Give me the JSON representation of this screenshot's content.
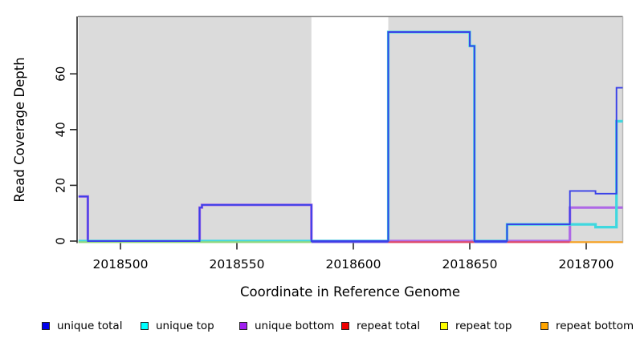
{
  "figure": {
    "x_label": "Coordinate in Reference Genome",
    "y_label": "Read Coverage Depth"
  },
  "axes": {
    "x_ticks": [
      2018500,
      2018550,
      2018600,
      2018650,
      2018700
    ],
    "y_ticks": [
      0,
      20,
      40,
      60
    ]
  },
  "legend": {
    "items": [
      {
        "label": "unique total",
        "color": "#0000EE"
      },
      {
        "label": "unique top",
        "color": "#00FFFF"
      },
      {
        "label": "unique bottom",
        "color": "#A020F0"
      },
      {
        "label": "repeat total",
        "color": "#EE0000"
      },
      {
        "label": "repeat top",
        "color": "#FFFF00"
      },
      {
        "label": "repeat bottom",
        "color": "#FFA500"
      }
    ]
  },
  "chart_data": {
    "type": "line",
    "subtype": "step-coverage",
    "title": "",
    "xlabel": "Coordinate in Reference Genome",
    "ylabel": "Read Coverage Depth",
    "xlim": [
      2018482,
      2018716
    ],
    "ylim": [
      0,
      80
    ],
    "grid": false,
    "legend_position": "bottom",
    "panel_background": "#ffffff",
    "shaded_regions": [
      {
        "x1": 2018482,
        "x2": 2018582,
        "color": "#DBDBDB"
      },
      {
        "x1": 2018615,
        "x2": 2018716,
        "color": "#DBDBDB"
      }
    ],
    "white_gap": {
      "x1": 2018582,
      "x2": 2018615
    },
    "series": [
      {
        "name": "unique total",
        "line_color": "#3940E8",
        "line_width": 1.9,
        "points": [
          [
            2018482,
            16
          ],
          [
            2018486,
            16
          ],
          [
            2018486,
            0
          ],
          [
            2018534,
            0
          ],
          [
            2018534,
            12
          ],
          [
            2018535,
            12
          ],
          [
            2018535,
            13
          ],
          [
            2018582,
            13
          ],
          [
            2018582,
            0
          ],
          [
            2018615,
            0
          ],
          [
            2018615,
            75
          ],
          [
            2018650,
            75
          ],
          [
            2018650,
            70
          ],
          [
            2018652,
            70
          ],
          [
            2018652,
            0
          ],
          [
            2018666,
            0
          ],
          [
            2018666,
            6
          ],
          [
            2018693,
            6
          ],
          [
            2018693,
            18
          ],
          [
            2018704,
            18
          ],
          [
            2018704,
            17
          ],
          [
            2018713,
            17
          ],
          [
            2018713,
            55
          ],
          [
            2018716,
            55
          ]
        ]
      },
      {
        "name": "unique top",
        "line_color": "#3FD8DF",
        "line_width": 3.2,
        "points": [
          [
            2018482,
            0
          ],
          [
            2018615,
            0
          ],
          [
            2018615,
            75
          ],
          [
            2018650,
            75
          ],
          [
            2018650,
            70
          ],
          [
            2018652,
            70
          ],
          [
            2018652,
            0
          ],
          [
            2018666,
            0
          ],
          [
            2018666,
            6
          ],
          [
            2018704,
            6
          ],
          [
            2018704,
            5
          ],
          [
            2018713,
            5
          ],
          [
            2018713,
            43
          ],
          [
            2018716,
            43
          ]
        ]
      },
      {
        "name": "unique bottom",
        "line_color": "#AE68E6",
        "line_width": 3.2,
        "points": [
          [
            2018482,
            16
          ],
          [
            2018486,
            16
          ],
          [
            2018486,
            0
          ],
          [
            2018534,
            0
          ],
          [
            2018534,
            12
          ],
          [
            2018535,
            12
          ],
          [
            2018535,
            13
          ],
          [
            2018582,
            13
          ],
          [
            2018582,
            0
          ],
          [
            2018693,
            0
          ],
          [
            2018693,
            12
          ],
          [
            2018716,
            12
          ]
        ]
      },
      {
        "name": "repeat total",
        "line_color": "#E0344F",
        "line_width": 2,
        "points": [
          [
            2018482,
            0
          ],
          [
            2018716,
            0
          ]
        ]
      },
      {
        "name": "repeat top",
        "line_color": "#F2E42A",
        "line_width": 2,
        "points": [
          [
            2018482,
            0
          ],
          [
            2018716,
            0
          ]
        ]
      },
      {
        "name": "repeat bottom",
        "line_color": "#F7A01D",
        "line_width": 2,
        "points": [
          [
            2018482,
            0
          ],
          [
            2018716,
            0
          ]
        ]
      }
    ],
    "baseline_segments": [
      {
        "x1": 2018482,
        "x2": 2018582,
        "color": "#93D77C"
      },
      {
        "x1": 2018582,
        "x2": 2018615,
        "color": "#5A49E2"
      },
      {
        "x1": 2018615,
        "x2": 2018652,
        "color": "#E04765"
      },
      {
        "x1": 2018652,
        "x2": 2018666,
        "color": "#4653EA"
      },
      {
        "x1": 2018666,
        "x2": 2018693,
        "color": "#E04765"
      },
      {
        "x1": 2018693,
        "x2": 2018716,
        "color": "#F7A01D"
      }
    ]
  }
}
